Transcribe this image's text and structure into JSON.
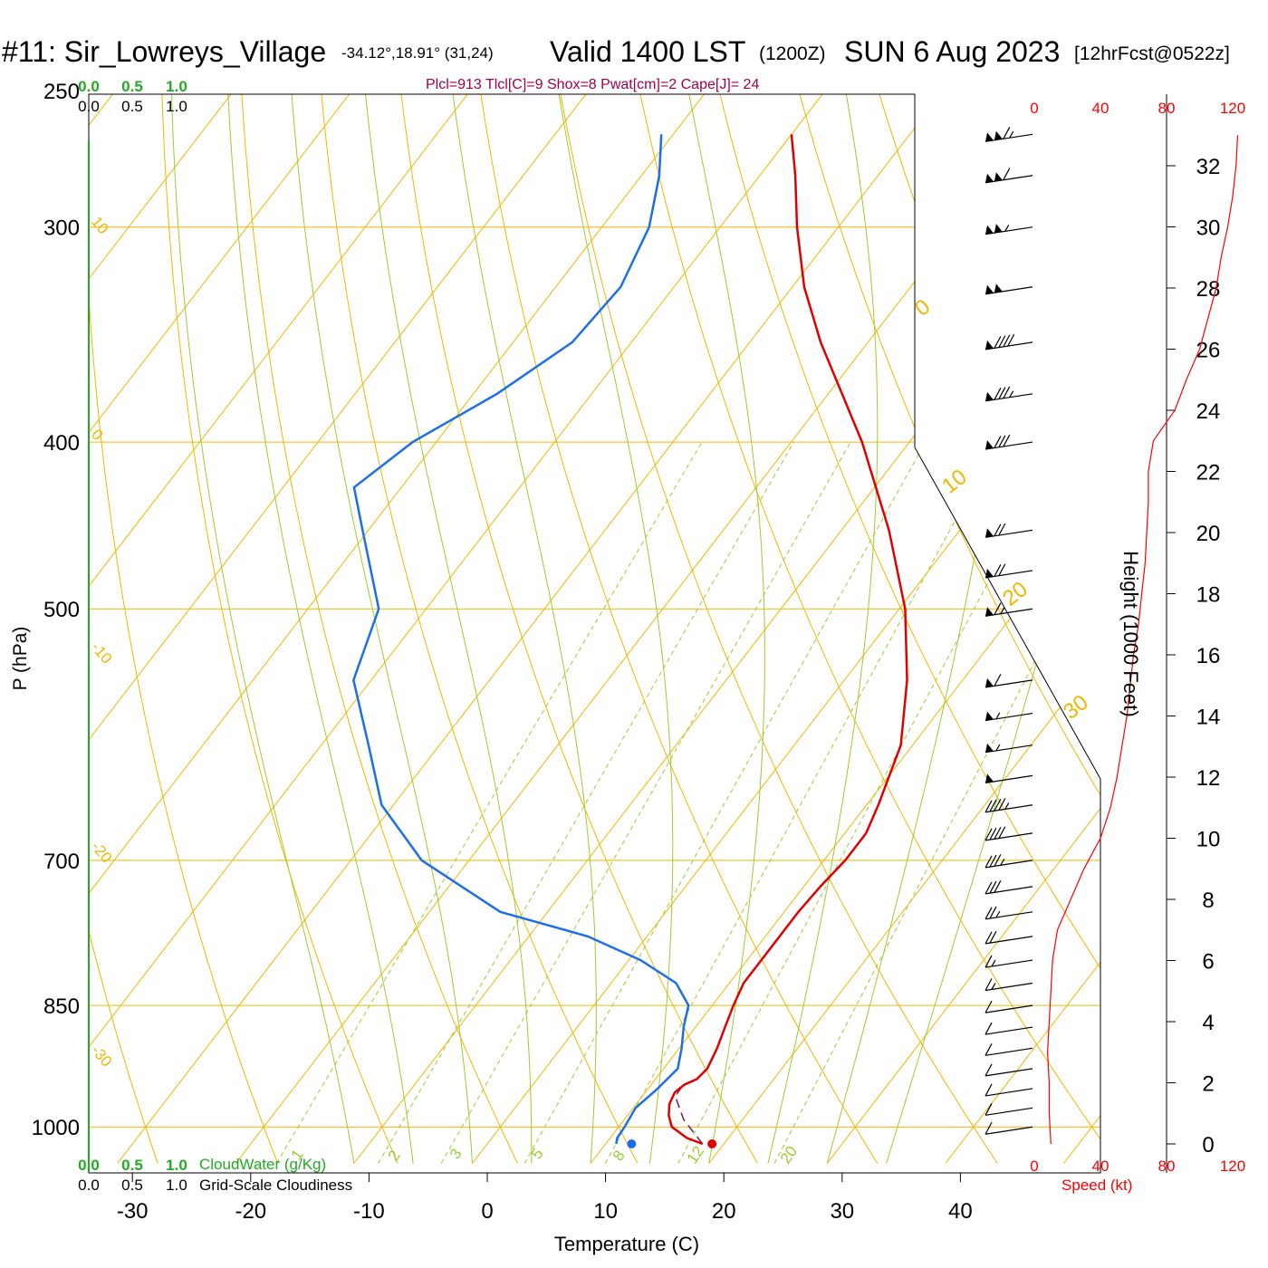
{
  "header": {
    "station": "#11: Sir_Lowreys_Village",
    "coords": "-34.12°,18.91° (31,24)",
    "valid": "Valid 1400 LST",
    "zulu": "(1200Z)",
    "date": "SUN 6 Aug 2023",
    "forecast": "[12hrFcst@0522z]",
    "indices": "Plcl=913 Tlcl[C]=9 Shox=8 Pwat[cm]=2 Cape[J]= 24"
  },
  "axes": {
    "ylabel": "P (hPa)",
    "xlabel": "Temperature (C)",
    "right_label": "Height (1000 Feet)",
    "speed_label": "Speed (kt)",
    "cloudwater_label": "CloudWater (g/Kg)",
    "cloudiness_label": "Grid-Scale Cloudiness"
  },
  "colors": {
    "isobar": "#f2b600",
    "dry_adiabat": "#f2b600",
    "moist_adiabat": "#9acd32",
    "mixing_ratio": "#9acd32",
    "temperature": "#e00000",
    "dewpoint": "#1e6fe6",
    "parcel": "#6a1b6a",
    "indices": "#a0004a",
    "cloud_green": "#22aa22",
    "speed_red": "#ff0000"
  },
  "chart_data": {
    "type": "line",
    "subtype": "skew-T log-p sounding",
    "pressure_ticks": [
      "250",
      "300",
      "400",
      "500",
      "700",
      "850",
      "1000"
    ],
    "temperature_ticks": [
      "-30",
      "-20",
      "-10",
      "0",
      "10",
      "20",
      "30",
      "40"
    ],
    "height_ticks_kft": [
      "0",
      "2",
      "4",
      "6",
      "8",
      "10",
      "12",
      "14",
      "16",
      "18",
      "20",
      "22",
      "24",
      "26",
      "28",
      "30",
      "32"
    ],
    "speed_ticks": [
      "0",
      "40",
      "80",
      "120"
    ],
    "cloud_ticks": [
      "0.0",
      "0.5",
      "1.0"
    ],
    "dry_adiabat_labels": [
      "10",
      "0",
      "-10",
      "-20",
      "-30"
    ],
    "moist_adiabat_labels": [
      "0",
      "10",
      "20",
      "30"
    ],
    "mixing_ratio_labels": [
      "1",
      "2",
      "3",
      "5",
      "8",
      "12",
      "20"
    ],
    "xlim": [
      -30,
      40
    ],
    "plim": [
      1050,
      250
    ],
    "series": [
      {
        "key": "temperature",
        "points": [
          [
            1023,
            18.2
          ],
          [
            1015,
            16.5
          ],
          [
            1000,
            14.5
          ],
          [
            985,
            13.5
          ],
          [
            970,
            12.8
          ],
          [
            955,
            12.5
          ],
          [
            945,
            12.8
          ],
          [
            938,
            13.5
          ],
          [
            925,
            13.7
          ],
          [
            900,
            13.2
          ],
          [
            875,
            12.5
          ],
          [
            850,
            11.8
          ],
          [
            825,
            11.2
          ],
          [
            800,
            11.2
          ],
          [
            775,
            11.2
          ],
          [
            750,
            11.2
          ],
          [
            725,
            11.4
          ],
          [
            700,
            11.8
          ],
          [
            675,
            11.8
          ],
          [
            650,
            11.0
          ],
          [
            600,
            9.0
          ],
          [
            550,
            5.3
          ],
          [
            500,
            0.5
          ],
          [
            450,
            -6.0
          ],
          [
            400,
            -14.0
          ],
          [
            350,
            -24.0
          ],
          [
            325,
            -29.0
          ],
          [
            300,
            -33.5
          ],
          [
            280,
            -37.0
          ],
          [
            265,
            -40.0
          ]
        ]
      },
      {
        "key": "dewpoint",
        "points": [
          [
            1023,
            10.9
          ],
          [
            1015,
            10.6
          ],
          [
            1000,
            10.5
          ],
          [
            975,
            10.2
          ],
          [
            950,
            10.8
          ],
          [
            925,
            11.2
          ],
          [
            900,
            10.2
          ],
          [
            875,
            9.0
          ],
          [
            850,
            8.0
          ],
          [
            825,
            5.5
          ],
          [
            800,
            1.0
          ],
          [
            775,
            -5.0
          ],
          [
            750,
            -14.0
          ],
          [
            700,
            -24.0
          ],
          [
            650,
            -31.0
          ],
          [
            600,
            -36.0
          ],
          [
            550,
            -41.5
          ],
          [
            500,
            -44.0
          ],
          [
            450,
            -50.5
          ],
          [
            425,
            -54.0
          ],
          [
            400,
            -52.0
          ],
          [
            375,
            -48.0
          ],
          [
            350,
            -45.0
          ],
          [
            325,
            -44.5
          ],
          [
            300,
            -46.0
          ],
          [
            280,
            -48.5
          ],
          [
            265,
            -51.0
          ]
        ]
      },
      {
        "key": "parcel",
        "points": [
          [
            1023,
            18.2
          ],
          [
            990,
            15.0
          ],
          [
            960,
            12.8
          ],
          [
            945,
            12.7
          ],
          [
            938,
            13.5
          ]
        ]
      }
    ],
    "surface_temperature": [
      1023,
      19.0
    ],
    "surface_dewpoint": [
      1023,
      12.2
    ],
    "wind_speed_profile_kt": [
      [
        0,
        10
      ],
      [
        1,
        9
      ],
      [
        2,
        9
      ],
      [
        3,
        8
      ],
      [
        4,
        9
      ],
      [
        5,
        10
      ],
      [
        6,
        11
      ],
      [
        7,
        14
      ],
      [
        8,
        22
      ],
      [
        9,
        30
      ],
      [
        10,
        40
      ],
      [
        11,
        46
      ],
      [
        12,
        50
      ],
      [
        13,
        53
      ],
      [
        14,
        56
      ],
      [
        15,
        58
      ],
      [
        16,
        60
      ],
      [
        17,
        63
      ],
      [
        18,
        65
      ],
      [
        19,
        67
      ],
      [
        20,
        68
      ],
      [
        21,
        69
      ],
      [
        22,
        69
      ],
      [
        23,
        72
      ],
      [
        24,
        85
      ],
      [
        25,
        92
      ],
      [
        26,
        100
      ],
      [
        27,
        105
      ],
      [
        28,
        110
      ],
      [
        29,
        113
      ],
      [
        30,
        117
      ],
      [
        31,
        120
      ],
      [
        32,
        122
      ],
      [
        33,
        123
      ]
    ],
    "wind_barbs": [
      {
        "p": 265,
        "kt": 115
      },
      {
        "p": 280,
        "kt": 110
      },
      {
        "p": 300,
        "kt": 105
      },
      {
        "p": 325,
        "kt": 100
      },
      {
        "p": 350,
        "kt": 90
      },
      {
        "p": 375,
        "kt": 85
      },
      {
        "p": 400,
        "kt": 80
      },
      {
        "p": 450,
        "kt": 70
      },
      {
        "p": 475,
        "kt": 70
      },
      {
        "p": 500,
        "kt": 65
      },
      {
        "p": 550,
        "kt": 60
      },
      {
        "p": 575,
        "kt": 55
      },
      {
        "p": 600,
        "kt": 55
      },
      {
        "p": 625,
        "kt": 50
      },
      {
        "p": 650,
        "kt": 45
      },
      {
        "p": 675,
        "kt": 40
      },
      {
        "p": 700,
        "kt": 35
      },
      {
        "p": 725,
        "kt": 30
      },
      {
        "p": 750,
        "kt": 25
      },
      {
        "p": 775,
        "kt": 20
      },
      {
        "p": 800,
        "kt": 15
      },
      {
        "p": 825,
        "kt": 15
      },
      {
        "p": 850,
        "kt": 10
      },
      {
        "p": 875,
        "kt": 10
      },
      {
        "p": 900,
        "kt": 10
      },
      {
        "p": 925,
        "kt": 10
      },
      {
        "p": 950,
        "kt": 10
      },
      {
        "p": 975,
        "kt": 10
      },
      {
        "p": 1000,
        "kt": 10
      }
    ]
  }
}
